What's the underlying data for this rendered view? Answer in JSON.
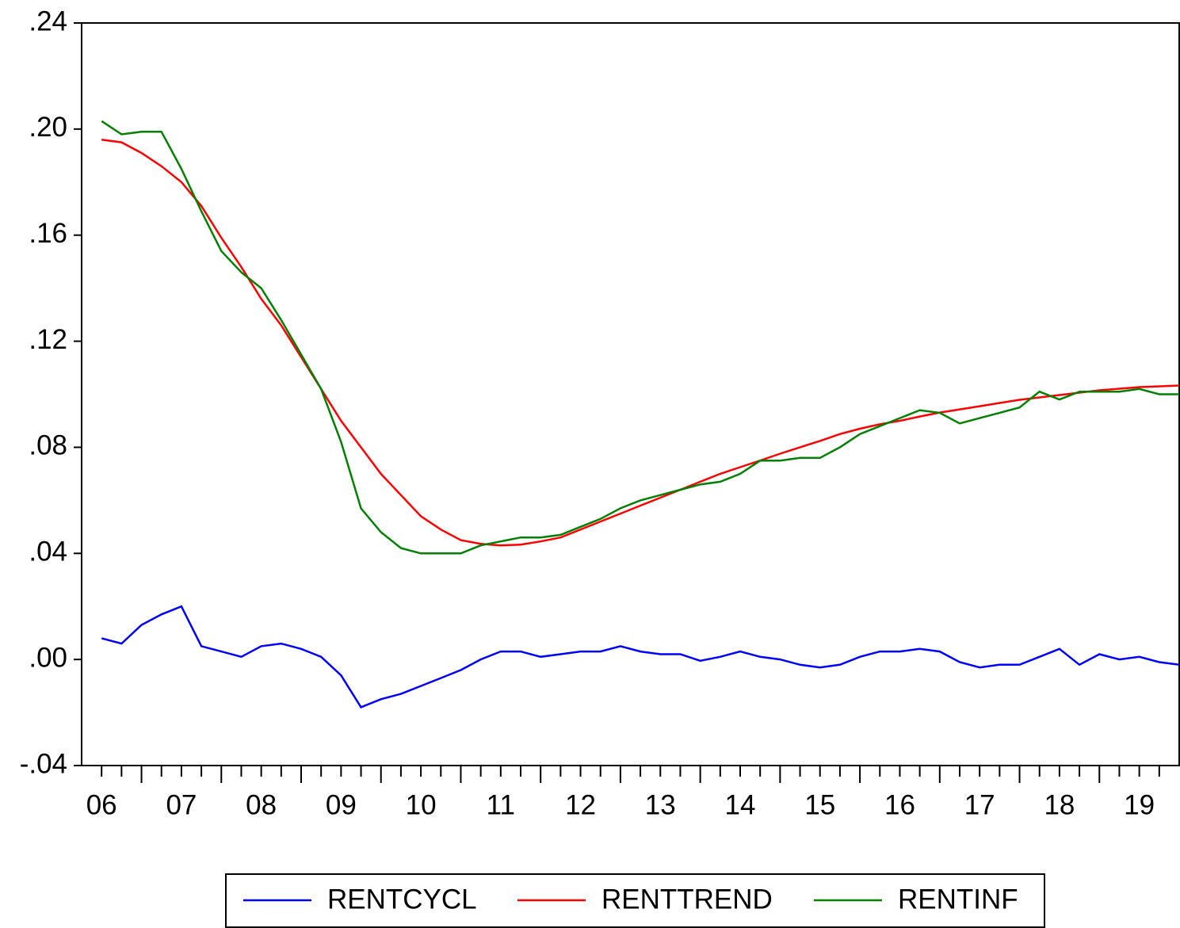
{
  "chart_data": {
    "type": "line",
    "x": [
      2006.5,
      2006.75,
      2007,
      2007.25,
      2007.5,
      2007.75,
      2008,
      2008.25,
      2008.5,
      2008.75,
      2009,
      2009.25,
      2009.5,
      2009.75,
      2010,
      2010.25,
      2010.5,
      2010.75,
      2011,
      2011.25,
      2011.5,
      2011.75,
      2012,
      2012.25,
      2012.5,
      2012.75,
      2013,
      2013.25,
      2013.5,
      2013.75,
      2014,
      2014.25,
      2014.5,
      2014.75,
      2015,
      2015.25,
      2015.5,
      2015.75,
      2016,
      2016.25,
      2016.5,
      2016.75,
      2017,
      2017.25,
      2017.5,
      2017.75,
      2018,
      2018.25,
      2018.5,
      2018.75,
      2019,
      2019.25,
      2019.5,
      2019.75,
      2020
    ],
    "series": [
      {
        "name": "RENTCYCL",
        "color": "#0000ff",
        "values": [
          0.008,
          0.006,
          0.013,
          0.017,
          0.02,
          0.005,
          0.003,
          0.001,
          0.005,
          0.006,
          0.004,
          0.001,
          -0.006,
          -0.018,
          -0.015,
          -0.013,
          -0.01,
          -0.007,
          -0.004,
          0,
          0.003,
          0.003,
          0.001,
          0.002,
          0.003,
          0.003,
          0.005,
          0.003,
          0.002,
          0.002,
          -0.0005,
          0.001,
          0.003,
          0.001,
          0,
          -0.002,
          -0.003,
          -0.002,
          0.001,
          0.003,
          0.003,
          0.004,
          0.003,
          -0.001,
          -0.003,
          -0.002,
          -0.002,
          0.001,
          0.004,
          -0.002,
          0.002,
          0,
          0.001,
          -0.001,
          -0.002
        ]
      },
      {
        "name": "RENTTREND",
        "color": "#ff0000",
        "values": [
          0.196,
          0.195,
          0.191,
          0.186,
          0.18,
          0.171,
          0.159,
          0.148,
          0.136,
          0.126,
          0.114,
          0.102,
          0.09,
          0.08,
          0.07,
          0.062,
          0.054,
          0.049,
          0.045,
          0.0436,
          0.043,
          0.0433,
          0.0445,
          0.046,
          0.049,
          0.052,
          0.055,
          0.058,
          0.061,
          0.064,
          0.067,
          0.07,
          0.0725,
          0.075,
          0.0776,
          0.08,
          0.0824,
          0.085,
          0.087,
          0.0887,
          0.09,
          0.0916,
          0.0931,
          0.0943,
          0.0955,
          0.0967,
          0.0979,
          0.0988,
          0.0997,
          0.1006,
          0.1015,
          0.1021,
          0.1027,
          0.103,
          0.1033
        ]
      },
      {
        "name": "RENTINF",
        "color": "#008000",
        "values": [
          0.203,
          0.198,
          0.199,
          0.199,
          0.185,
          0.169,
          0.154,
          0.146,
          0.14,
          0.128,
          0.115,
          0.102,
          0.082,
          0.057,
          0.048,
          0.042,
          0.04,
          0.04,
          0.04,
          0.043,
          0.0445,
          0.046,
          0.046,
          0.047,
          0.05,
          0.053,
          0.057,
          0.06,
          0.062,
          0.064,
          0.066,
          0.067,
          0.07,
          0.075,
          0.075,
          0.076,
          0.076,
          0.08,
          0.085,
          0.088,
          0.091,
          0.094,
          0.093,
          0.089,
          0.091,
          0.093,
          0.095,
          0.101,
          0.098,
          0.101,
          0.101,
          0.101,
          0.102,
          0.1,
          0.1
        ]
      }
    ],
    "xlim": [
      2006.25,
      2020
    ],
    "xticks": [
      {
        "value": 2006.5,
        "label": "06"
      },
      {
        "value": 2007.5,
        "label": "07"
      },
      {
        "value": 2008.5,
        "label": "08"
      },
      {
        "value": 2009.5,
        "label": "09"
      },
      {
        "value": 2010.5,
        "label": "10"
      },
      {
        "value": 2011.5,
        "label": "11"
      },
      {
        "value": 2012.5,
        "label": "12"
      },
      {
        "value": 2013.5,
        "label": "13"
      },
      {
        "value": 2014.5,
        "label": "14"
      },
      {
        "value": 2015.5,
        "label": "15"
      },
      {
        "value": 2016.5,
        "label": "16"
      },
      {
        "value": 2017.5,
        "label": "17"
      },
      {
        "value": 2018.5,
        "label": "18"
      },
      {
        "value": 2019.5,
        "label": "19"
      }
    ],
    "xtick_marks": [
      2006.5,
      2006.75,
      2007,
      2007.25,
      2007.5,
      2007.75,
      2008,
      2008.25,
      2008.5,
      2008.75,
      2009,
      2009.25,
      2009.5,
      2009.75,
      2010,
      2010.25,
      2010.5,
      2010.75,
      2011,
      2011.25,
      2011.5,
      2011.75,
      2012,
      2012.25,
      2012.5,
      2012.75,
      2013,
      2013.25,
      2013.5,
      2013.75,
      2014,
      2014.25,
      2014.5,
      2014.75,
      2015,
      2015.25,
      2015.5,
      2015.75,
      2016,
      2016.25,
      2016.5,
      2016.75,
      2017,
      2017.25,
      2017.5,
      2017.75,
      2018,
      2018.25,
      2018.5,
      2018.75,
      2019,
      2019.25,
      2019.5,
      2019.75
    ],
    "ylim": [
      -0.04,
      0.24
    ],
    "yticks": [
      {
        "value": -0.04,
        "label": "-.04"
      },
      {
        "value": 0,
        "label": ".00"
      },
      {
        "value": 0.04,
        "label": ".04"
      },
      {
        "value": 0.08,
        "label": ".08"
      },
      {
        "value": 0.12,
        "label": ".12"
      },
      {
        "value": 0.16,
        "label": ".16"
      },
      {
        "value": 0.2,
        "label": ".20"
      },
      {
        "value": 0.24,
        "label": ".24"
      }
    ],
    "grid": false,
    "legend": "bottom"
  }
}
